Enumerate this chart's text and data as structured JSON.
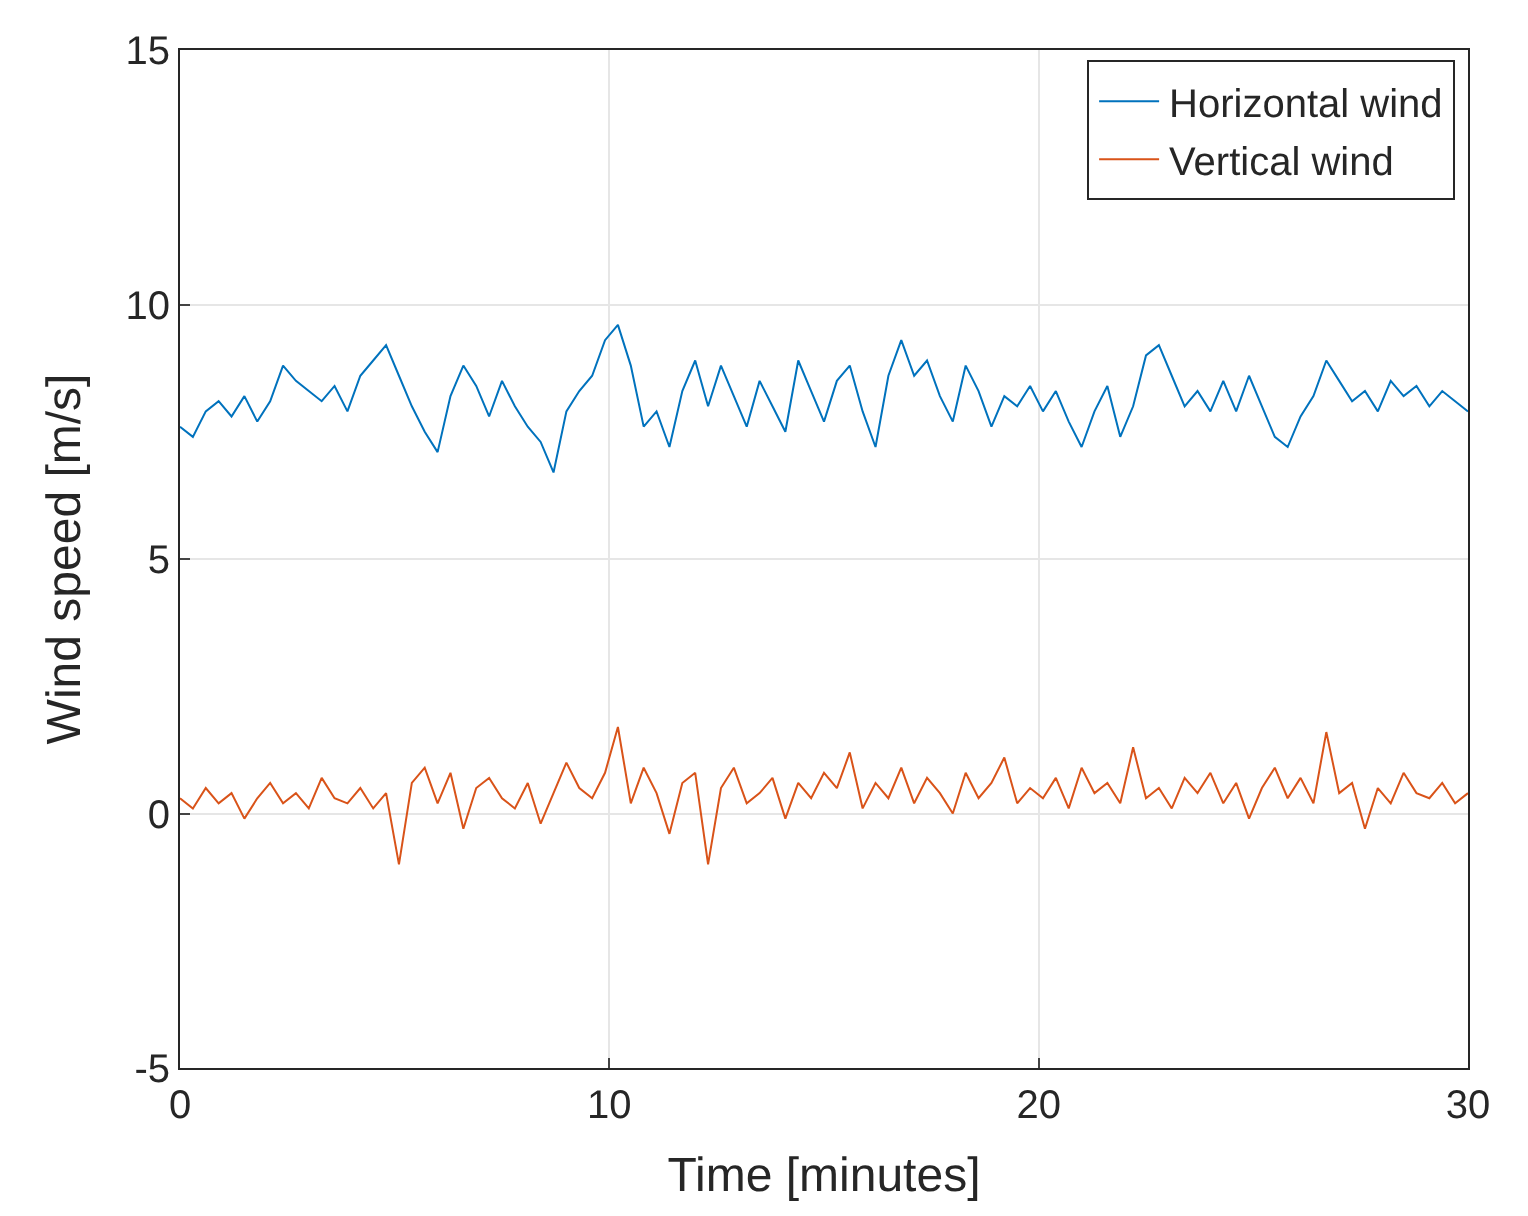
{
  "chart_data": {
    "type": "line",
    "xlabel": "Time [minutes]",
    "ylabel": "Wind speed [m/s]",
    "x": [
      0,
      0.3,
      0.6,
      0.9,
      1.2,
      1.5,
      1.8,
      2.1,
      2.4,
      2.7,
      3.0,
      3.3,
      3.6,
      3.9,
      4.2,
      4.5,
      4.8,
      5.1,
      5.4,
      5.7,
      6.0,
      6.3,
      6.6,
      6.9,
      7.2,
      7.5,
      7.8,
      8.1,
      8.4,
      8.7,
      9.0,
      9.3,
      9.6,
      9.9,
      10.2,
      10.5,
      10.8,
      11.1,
      11.4,
      11.7,
      12.0,
      12.3,
      12.6,
      12.9,
      13.2,
      13.5,
      13.8,
      14.1,
      14.4,
      14.7,
      15.0,
      15.3,
      15.6,
      15.9,
      16.2,
      16.5,
      16.8,
      17.1,
      17.4,
      17.7,
      18.0,
      18.3,
      18.6,
      18.9,
      19.2,
      19.5,
      19.8,
      20.1,
      20.4,
      20.7,
      21.0,
      21.3,
      21.6,
      21.9,
      22.2,
      22.5,
      22.8,
      23.1,
      23.4,
      23.7,
      24.0,
      24.3,
      24.6,
      24.9,
      25.2,
      25.5,
      25.8,
      26.1,
      26.4,
      26.7,
      27.0,
      27.3,
      27.6,
      27.9,
      28.2,
      28.5,
      28.8,
      29.1,
      29.4,
      29.7,
      30.0
    ],
    "series": [
      {
        "name": "Horizontal wind",
        "color": "#0072bd",
        "values": [
          7.6,
          7.4,
          7.9,
          8.1,
          7.8,
          8.2,
          7.7,
          8.1,
          8.8,
          8.5,
          8.3,
          8.1,
          8.4,
          7.9,
          8.6,
          8.9,
          9.2,
          8.6,
          8.0,
          7.5,
          7.1,
          8.2,
          8.8,
          8.4,
          7.8,
          8.5,
          8.0,
          7.6,
          7.3,
          6.7,
          7.9,
          8.3,
          8.6,
          9.3,
          9.6,
          8.8,
          7.6,
          7.9,
          7.2,
          8.3,
          8.9,
          8.0,
          8.8,
          8.2,
          7.6,
          8.5,
          8.0,
          7.5,
          8.9,
          8.3,
          7.7,
          8.5,
          8.8,
          7.9,
          7.2,
          8.6,
          9.3,
          8.6,
          8.9,
          8.2,
          7.7,
          8.8,
          8.3,
          7.6,
          8.2,
          8.0,
          8.4,
          7.9,
          8.3,
          7.7,
          7.2,
          7.9,
          8.4,
          7.4,
          8.0,
          9.0,
          9.2,
          8.6,
          8.0,
          8.3,
          7.9,
          8.5,
          7.9,
          8.6,
          8.0,
          7.4,
          7.2,
          7.8,
          8.2,
          8.9,
          8.5,
          8.1,
          8.3,
          7.9,
          8.5,
          8.2,
          8.4,
          8.0,
          8.3,
          8.1,
          7.9
        ]
      },
      {
        "name": "Vertical wind",
        "color": "#d95319",
        "values": [
          0.3,
          0.1,
          0.5,
          0.2,
          0.4,
          -0.1,
          0.3,
          0.6,
          0.2,
          0.4,
          0.1,
          0.7,
          0.3,
          0.2,
          0.5,
          0.1,
          0.4,
          -1.0,
          0.6,
          0.9,
          0.2,
          0.8,
          -0.3,
          0.5,
          0.7,
          0.3,
          0.1,
          0.6,
          -0.2,
          0.4,
          1.0,
          0.5,
          0.3,
          0.8,
          1.7,
          0.2,
          0.9,
          0.4,
          -0.4,
          0.6,
          0.8,
          -1.0,
          0.5,
          0.9,
          0.2,
          0.4,
          0.7,
          -0.1,
          0.6,
          0.3,
          0.8,
          0.5,
          1.2,
          0.1,
          0.6,
          0.3,
          0.9,
          0.2,
          0.7,
          0.4,
          0.0,
          0.8,
          0.3,
          0.6,
          1.1,
          0.2,
          0.5,
          0.3,
          0.7,
          0.1,
          0.9,
          0.4,
          0.6,
          0.2,
          1.3,
          0.3,
          0.5,
          0.1,
          0.7,
          0.4,
          0.8,
          0.2,
          0.6,
          -0.1,
          0.5,
          0.9,
          0.3,
          0.7,
          0.2,
          1.6,
          0.4,
          0.6,
          -0.3,
          0.5,
          0.2,
          0.8,
          0.4,
          0.3,
          0.6,
          0.2,
          0.4
        ]
      }
    ],
    "xlim": [
      0,
      30
    ],
    "xticks": [
      0,
      10,
      20,
      30
    ],
    "ylim": [
      -5,
      15
    ],
    "yticks": [
      -5,
      0,
      5,
      10,
      15
    ],
    "grid": true,
    "legend": "top right",
    "line_style": "solid",
    "marker": "none"
  }
}
